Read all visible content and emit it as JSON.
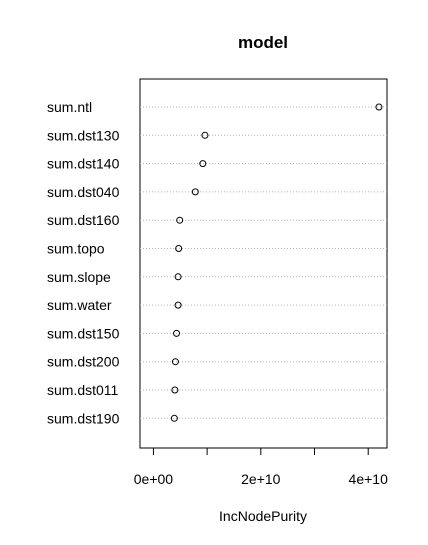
{
  "chart_data": {
    "type": "scatter",
    "title": "model",
    "xlabel": "IncNodePurity",
    "ylabel": "",
    "categories": [
      "sum.ntl",
      "sum.dst130",
      "sum.dst140",
      "sum.dst040",
      "sum.dst160",
      "sum.topo",
      "sum.slope",
      "sum.water",
      "sum.dst150",
      "sum.dst200",
      "sum.dst011",
      "sum.dst190"
    ],
    "values": [
      42000000000.0,
      9600000000.0,
      9200000000.0,
      7800000000.0,
      4900000000.0,
      4700000000.0,
      4600000000.0,
      4600000000.0,
      4300000000.0,
      4100000000.0,
      4000000000.0,
      3900000000.0
    ],
    "xlim": [
      -2500000000.0,
      43500000000.0
    ],
    "xticks": [
      0,
      10000000000.0,
      20000000000.0,
      30000000000.0,
      40000000000.0
    ],
    "xtick_labels": [
      "0e+00",
      "",
      "2e+10",
      "",
      "4e+10"
    ],
    "grid": "dotted horizontal lines per category",
    "marker": "open-circle"
  }
}
